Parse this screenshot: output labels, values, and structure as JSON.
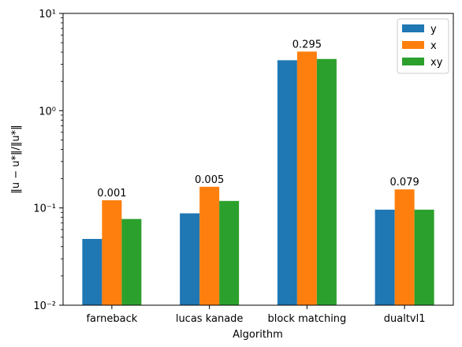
{
  "chart_data": {
    "type": "bar",
    "title": "",
    "xlabel": "Algorithm",
    "ylabel": "‖u − u*‖/‖u*‖",
    "yscale": "log",
    "ylim": [
      0.01,
      10
    ],
    "grid": false,
    "legend_position": "top-right",
    "categories": [
      "farneback",
      "lucas kanade",
      "block matching",
      "dualtvl1"
    ],
    "series": [
      {
        "name": "y",
        "color": "#1f77b4",
        "values": [
          0.048,
          0.088,
          3.3,
          0.096
        ]
      },
      {
        "name": "x",
        "color": "#ff7f0e",
        "values": [
          0.12,
          0.165,
          4.05,
          0.155
        ]
      },
      {
        "name": "xy",
        "color": "#2ca02c",
        "values": [
          0.077,
          0.118,
          3.4,
          0.096
        ]
      }
    ],
    "annotations": [
      "0.001",
      "0.005",
      "0.295",
      "0.079"
    ],
    "y_ticks": [
      {
        "value": 0.01,
        "label": "10⁻²"
      },
      {
        "value": 0.1,
        "label": "10⁻¹"
      },
      {
        "value": 1,
        "label": "10⁰"
      },
      {
        "value": 10,
        "label": "10¹"
      }
    ]
  }
}
